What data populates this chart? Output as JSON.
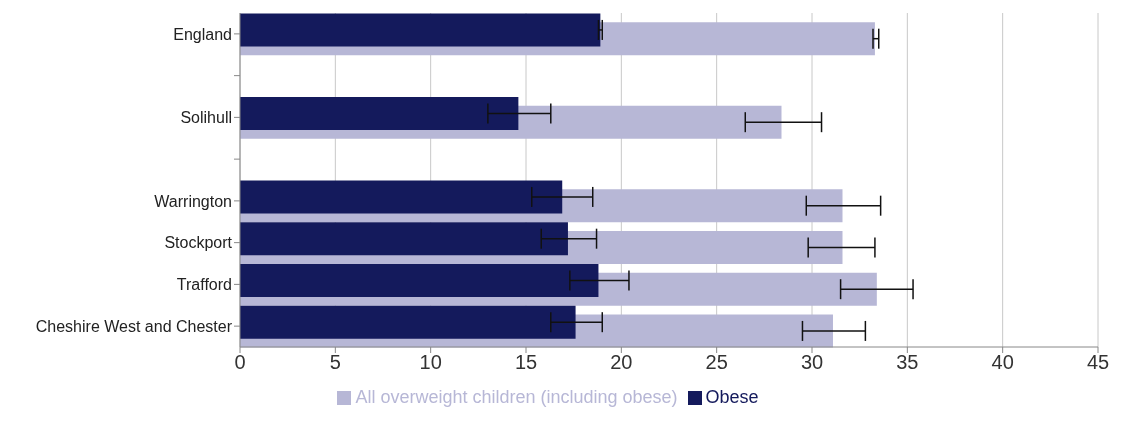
{
  "chart_data": {
    "type": "bar",
    "orientation": "horizontal",
    "categories": [
      "England",
      null,
      "Solihull",
      null,
      "Warrington",
      "Stockport",
      "Trafford",
      "Cheshire West and Chester"
    ],
    "series": [
      {
        "name": "All overweight children (including obese)",
        "color": "#b7b7d6",
        "values": [
          33.3,
          null,
          28.4,
          null,
          31.6,
          31.6,
          33.4,
          31.1
        ],
        "errors": [
          [
            33.2,
            33.5
          ],
          null,
          [
            26.5,
            30.5
          ],
          null,
          [
            29.7,
            33.6
          ],
          [
            29.8,
            33.3
          ],
          [
            31.5,
            35.3
          ],
          [
            29.5,
            32.8
          ]
        ]
      },
      {
        "name": "Obese",
        "color": "#141a5c",
        "values": [
          18.9,
          null,
          14.6,
          null,
          16.9,
          17.2,
          18.8,
          17.6
        ],
        "errors": [
          [
            18.8,
            19.0
          ],
          null,
          [
            13.0,
            16.3
          ],
          null,
          [
            15.3,
            18.5
          ],
          [
            15.8,
            18.7
          ],
          [
            17.3,
            20.4
          ],
          [
            16.3,
            19.0
          ]
        ]
      }
    ],
    "xlim": [
      0,
      45
    ],
    "xticks": [
      0,
      5,
      10,
      15,
      20,
      25,
      30,
      35,
      40,
      45
    ],
    "grid": "x",
    "legend": "bottom"
  }
}
